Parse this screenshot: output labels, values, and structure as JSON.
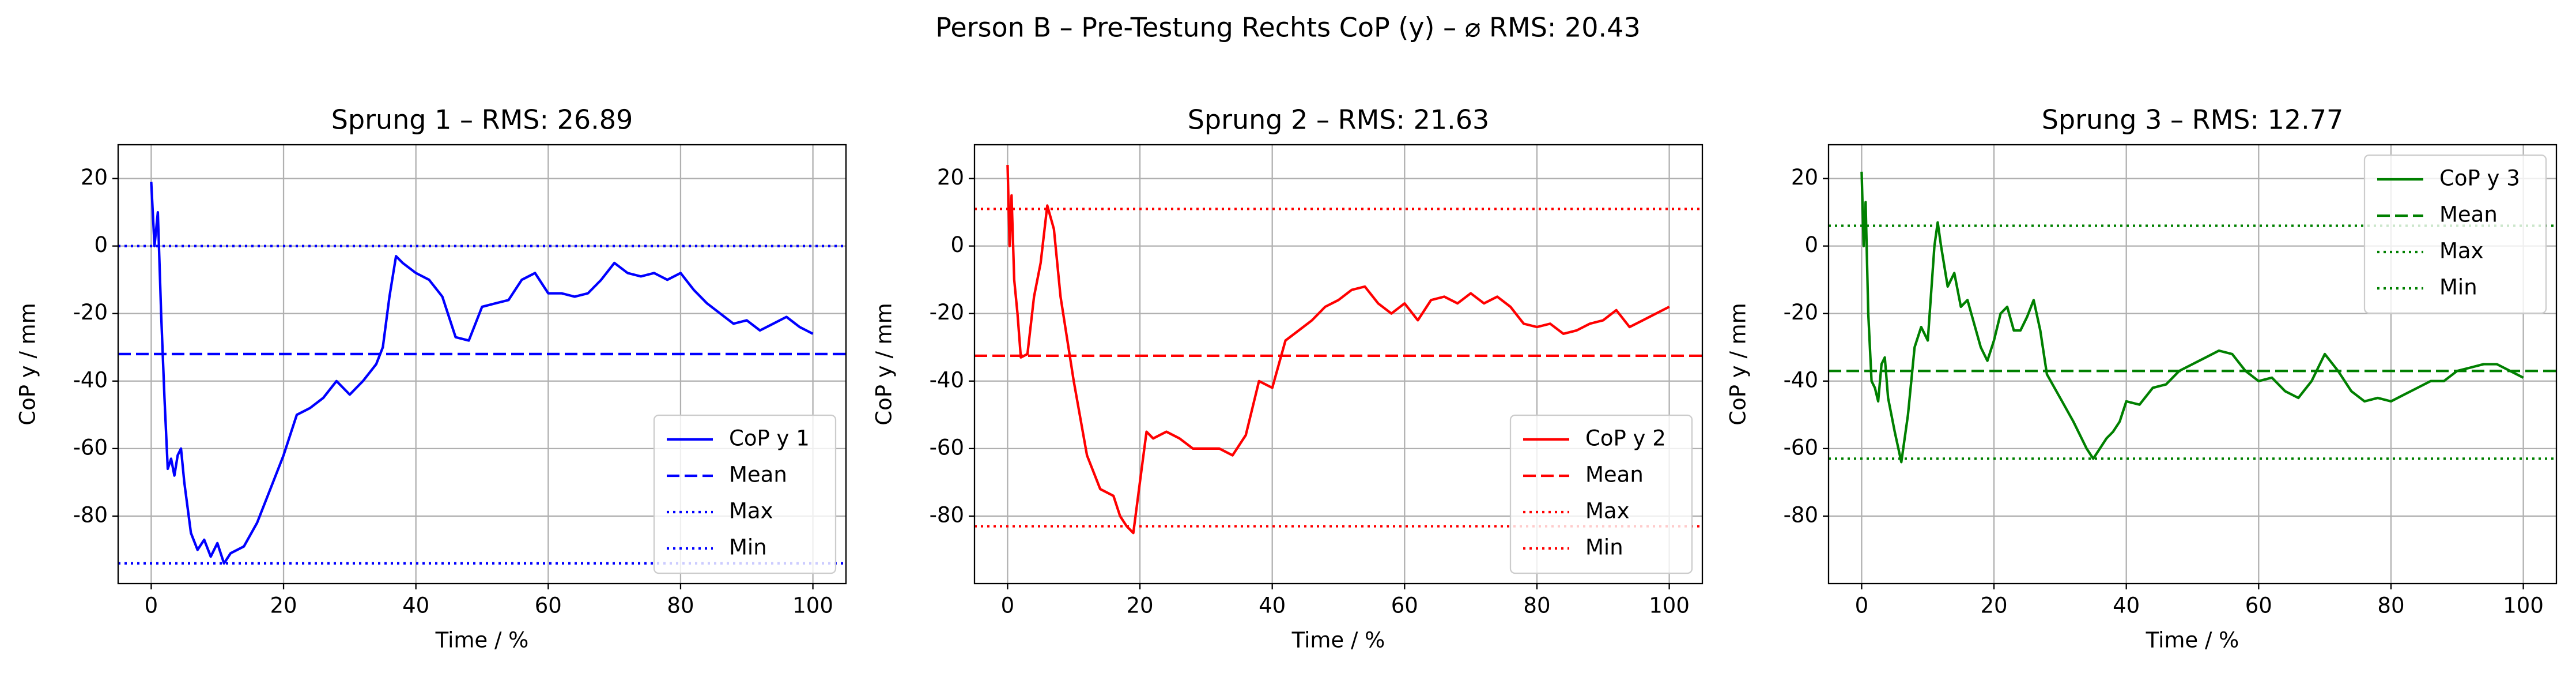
{
  "suptitle": "Person B – Pre-Testung Rechts CoP (y) – ⌀ RMS: 20.43",
  "chart_data": [
    {
      "type": "line",
      "title": "Sprung 1 – RMS: 26.89",
      "x_label": "Time / %",
      "y_label": "CoP y / mm",
      "x": [
        0,
        0.5,
        1,
        1.5,
        2,
        2.5,
        3,
        3.5,
        4,
        4.5,
        5,
        6,
        7,
        8,
        9,
        10,
        11,
        12,
        14,
        16,
        18,
        20,
        22,
        24,
        26,
        28,
        30,
        32,
        34,
        35,
        36,
        37,
        38,
        40,
        42,
        44,
        46,
        48,
        50,
        52,
        54,
        56,
        58,
        60,
        62,
        64,
        66,
        68,
        70,
        72,
        74,
        76,
        78,
        80,
        82,
        84,
        86,
        88,
        90,
        92,
        94,
        96,
        98,
        100
      ],
      "series": [
        {
          "name": "CoP y 1",
          "color": "#0000ff",
          "values": [
            19,
            0,
            10,
            -20,
            -45,
            -66,
            -63,
            -68,
            -62,
            -60,
            -70,
            -85,
            -90,
            -87,
            -92,
            -88,
            -94,
            -91,
            -89,
            -82,
            -72,
            -62,
            -50,
            -48,
            -45,
            -40,
            -44,
            -40,
            -35,
            -30,
            -15,
            -3,
            -5,
            -8,
            -10,
            -15,
            -27,
            -28,
            -18,
            -17,
            -16,
            -10,
            -8,
            -14,
            -14,
            -15,
            -14,
            -10,
            -5,
            -8,
            -9,
            -8,
            -10,
            -8,
            -13,
            -17,
            -20,
            -23,
            -22,
            -25,
            -23,
            -21,
            -24,
            -26
          ]
        }
      ],
      "hlines": [
        {
          "name": "Mean",
          "value": -32,
          "style": "dashed",
          "color": "#0000ff"
        },
        {
          "name": "Max",
          "value": 0,
          "style": "dotted",
          "color": "#0000ff"
        },
        {
          "name": "Min",
          "value": -94,
          "style": "dotted",
          "color": "#0000ff"
        }
      ],
      "xlim": [
        -5,
        105
      ],
      "ylim": [
        -100,
        30
      ],
      "xticks": [
        0,
        20,
        40,
        60,
        80,
        100
      ],
      "yticks": [
        -80,
        -60,
        -40,
        -20,
        0,
        20
      ],
      "grid": true,
      "legend": "lower right"
    },
    {
      "type": "line",
      "title": "Sprung 2 – RMS: 21.63",
      "x_label": "Time / %",
      "y_label": "CoP y / mm",
      "x": [
        0,
        0.3,
        0.6,
        1,
        1.5,
        2,
        3,
        4,
        5,
        6,
        7,
        8,
        10,
        12,
        14,
        16,
        17,
        18,
        19,
        20,
        21,
        22,
        24,
        26,
        28,
        30,
        32,
        34,
        36,
        38,
        40,
        42,
        44,
        46,
        48,
        50,
        52,
        54,
        56,
        58,
        60,
        62,
        64,
        66,
        68,
        70,
        72,
        74,
        76,
        78,
        80,
        82,
        84,
        86,
        88,
        90,
        92,
        94,
        96,
        98,
        100
      ],
      "series": [
        {
          "name": "CoP y 2",
          "color": "#ff0000",
          "values": [
            24,
            0,
            15,
            -10,
            -20,
            -33,
            -32,
            -15,
            -5,
            12,
            5,
            -15,
            -40,
            -62,
            -72,
            -74,
            -80,
            -83,
            -85,
            -70,
            -55,
            -57,
            -55,
            -57,
            -60,
            -60,
            -60,
            -62,
            -56,
            -40,
            -42,
            -28,
            -25,
            -22,
            -18,
            -16,
            -13,
            -12,
            -17,
            -20,
            -17,
            -22,
            -16,
            -15,
            -17,
            -14,
            -17,
            -15,
            -18,
            -23,
            -24,
            -23,
            -26,
            -25,
            -23,
            -22,
            -19,
            -24,
            -22,
            -20,
            -18
          ]
        }
      ],
      "hlines": [
        {
          "name": "Mean",
          "value": -32.5,
          "style": "dashed",
          "color": "#ff0000"
        },
        {
          "name": "Max",
          "value": 11,
          "style": "dotted",
          "color": "#ff0000"
        },
        {
          "name": "Min",
          "value": -83,
          "style": "dotted",
          "color": "#ff0000"
        }
      ],
      "xlim": [
        -5,
        105
      ],
      "ylim": [
        -100,
        30
      ],
      "xticks": [
        0,
        20,
        40,
        60,
        80,
        100
      ],
      "yticks": [
        -80,
        -60,
        -40,
        -20,
        0,
        20
      ],
      "grid": true,
      "legend": "lower right"
    },
    {
      "type": "line",
      "title": "Sprung 3 – RMS: 12.77",
      "x_label": "Time / %",
      "y_label": "CoP y / mm",
      "x": [
        0,
        0.3,
        0.6,
        1,
        1.5,
        2,
        2.5,
        3,
        3.5,
        4,
        5,
        6,
        7,
        8,
        9,
        10,
        11,
        11.5,
        12,
        13,
        14,
        15,
        16,
        18,
        19,
        20,
        21,
        22,
        23,
        24,
        25,
        26,
        27,
        28,
        30,
        32,
        34,
        35,
        36,
        37,
        38,
        39,
        40,
        42,
        44,
        46,
        48,
        50,
        52,
        54,
        56,
        58,
        60,
        62,
        64,
        66,
        68,
        70,
        72,
        74,
        76,
        78,
        80,
        82,
        84,
        86,
        88,
        90,
        92,
        94,
        96,
        98,
        100
      ],
      "series": [
        {
          "name": "CoP y 3",
          "color": "#008000",
          "values": [
            22,
            0,
            13,
            -20,
            -40,
            -42,
            -46,
            -35,
            -33,
            -45,
            -55,
            -64,
            -50,
            -30,
            -24,
            -28,
            0,
            7,
            0,
            -12,
            -8,
            -18,
            -16,
            -30,
            -34,
            -28,
            -20,
            -18,
            -25,
            -25,
            -21,
            -16,
            -25,
            -38,
            -45,
            -52,
            -60,
            -63,
            -60,
            -57,
            -55,
            -52,
            -46,
            -47,
            -42,
            -41,
            -37,
            -35,
            -33,
            -31,
            -32,
            -37,
            -40,
            -39,
            -43,
            -45,
            -40,
            -32,
            -37,
            -43,
            -46,
            -45,
            -46,
            -44,
            -42,
            -40,
            -40,
            -37,
            -36,
            -35,
            -35,
            -37,
            -39
          ]
        }
      ],
      "hlines": [
        {
          "name": "Mean",
          "value": -37,
          "style": "dashed",
          "color": "#008000"
        },
        {
          "name": "Max",
          "value": 6,
          "style": "dotted",
          "color": "#008000"
        },
        {
          "name": "Min",
          "value": -63,
          "style": "dotted",
          "color": "#008000"
        }
      ],
      "xlim": [
        -5,
        105
      ],
      "ylim": [
        -100,
        30
      ],
      "xticks": [
        0,
        20,
        40,
        60,
        80,
        100
      ],
      "yticks": [
        -80,
        -60,
        -40,
        -20,
        0,
        20
      ],
      "grid": true,
      "legend": "upper right"
    }
  ]
}
